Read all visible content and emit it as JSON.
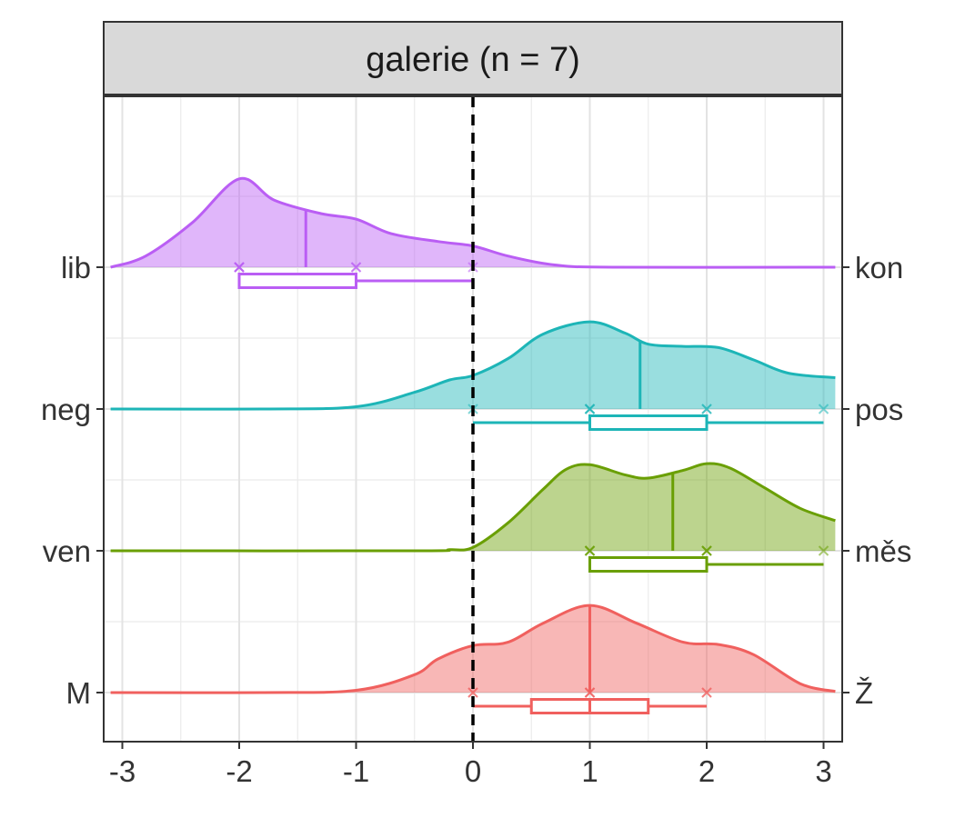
{
  "chart_data": {
    "type": "ridgeline",
    "facet_title": "galerie (n = 7)",
    "xlim": [
      -3.1,
      3.1
    ],
    "x_ticks": [
      "-3",
      "-2",
      "-1",
      "0",
      "1",
      "2",
      "3"
    ],
    "x_tick_values": [
      -3,
      -2,
      -1,
      0,
      1,
      2,
      3
    ],
    "reference_line": {
      "x": 0,
      "style": "dashed"
    },
    "grid": true,
    "series": [
      {
        "left_label": "M",
        "right_label": "Ž",
        "color": "#F0605E",
        "mean": 1.0,
        "box": {
          "min": 0,
          "q1": 0.5,
          "median": 1,
          "q3": 1.5,
          "max": 2
        },
        "points": [
          0,
          0,
          1,
          1,
          1,
          2,
          2
        ],
        "density": [
          [
            -3.1,
            0.0
          ],
          [
            -1.8,
            0.0
          ],
          [
            -1.0,
            0.02
          ],
          [
            -0.5,
            0.16
          ],
          [
            -0.3,
            0.3
          ],
          [
            0.0,
            0.42
          ],
          [
            0.3,
            0.45
          ],
          [
            0.6,
            0.62
          ],
          [
            1.0,
            0.78
          ],
          [
            1.4,
            0.62
          ],
          [
            1.8,
            0.45
          ],
          [
            2.1,
            0.43
          ],
          [
            2.4,
            0.34
          ],
          [
            2.8,
            0.08
          ],
          [
            3.1,
            0.01
          ]
        ]
      },
      {
        "left_label": "ven",
        "right_label": "měs",
        "color": "#6A9F04",
        "mean": 1.71,
        "box": {
          "min": 1,
          "q1": 1,
          "median": 2,
          "q3": 2,
          "max": 3
        },
        "points": [
          1,
          1,
          1,
          2,
          2,
          2,
          3
        ],
        "density": [
          [
            -3.1,
            0.0
          ],
          [
            -0.5,
            0.0
          ],
          [
            -0.2,
            0.01
          ],
          [
            0.0,
            0.03
          ],
          [
            0.3,
            0.25
          ],
          [
            0.6,
            0.55
          ],
          [
            0.8,
            0.73
          ],
          [
            1.0,
            0.77
          ],
          [
            1.3,
            0.68
          ],
          [
            1.5,
            0.65
          ],
          [
            1.8,
            0.72
          ],
          [
            2.0,
            0.78
          ],
          [
            2.2,
            0.74
          ],
          [
            2.5,
            0.56
          ],
          [
            2.8,
            0.38
          ],
          [
            3.1,
            0.27
          ]
        ]
      },
      {
        "left_label": "neg",
        "right_label": "pos",
        "color": "#1DB5B7",
        "mean": 1.43,
        "box": {
          "min": 0,
          "q1": 1,
          "median": 1,
          "q3": 2,
          "max": 3
        },
        "points": [
          0,
          1,
          1,
          1,
          2,
          2,
          3
        ],
        "density": [
          [
            -3.1,
            0.0
          ],
          [
            -1.8,
            0.0
          ],
          [
            -1.0,
            0.02
          ],
          [
            -0.5,
            0.15
          ],
          [
            -0.2,
            0.26
          ],
          [
            0.0,
            0.3
          ],
          [
            0.3,
            0.45
          ],
          [
            0.6,
            0.67
          ],
          [
            1.0,
            0.78
          ],
          [
            1.3,
            0.68
          ],
          [
            1.5,
            0.58
          ],
          [
            1.8,
            0.56
          ],
          [
            2.1,
            0.55
          ],
          [
            2.4,
            0.44
          ],
          [
            2.7,
            0.32
          ],
          [
            3.1,
            0.28
          ]
        ]
      },
      {
        "left_label": "lib",
        "right_label": "kon",
        "color": "#BA5EF4",
        "mean": -1.43,
        "box": {
          "min": -2,
          "q1": -2,
          "median": -2,
          "q3": -1,
          "max": 0
        },
        "points": [
          -2,
          -2,
          -2,
          -2,
          -1,
          -1,
          0
        ],
        "density": [
          [
            -3.1,
            0.0
          ],
          [
            -2.8,
            0.1
          ],
          [
            -2.4,
            0.4
          ],
          [
            -2.0,
            0.79
          ],
          [
            -1.7,
            0.6
          ],
          [
            -1.3,
            0.48
          ],
          [
            -1.0,
            0.43
          ],
          [
            -0.7,
            0.3
          ],
          [
            -0.3,
            0.23
          ],
          [
            0.0,
            0.19
          ],
          [
            0.3,
            0.1
          ],
          [
            0.7,
            0.02
          ],
          [
            1.2,
            0.0
          ],
          [
            3.1,
            0.0
          ]
        ]
      }
    ]
  }
}
